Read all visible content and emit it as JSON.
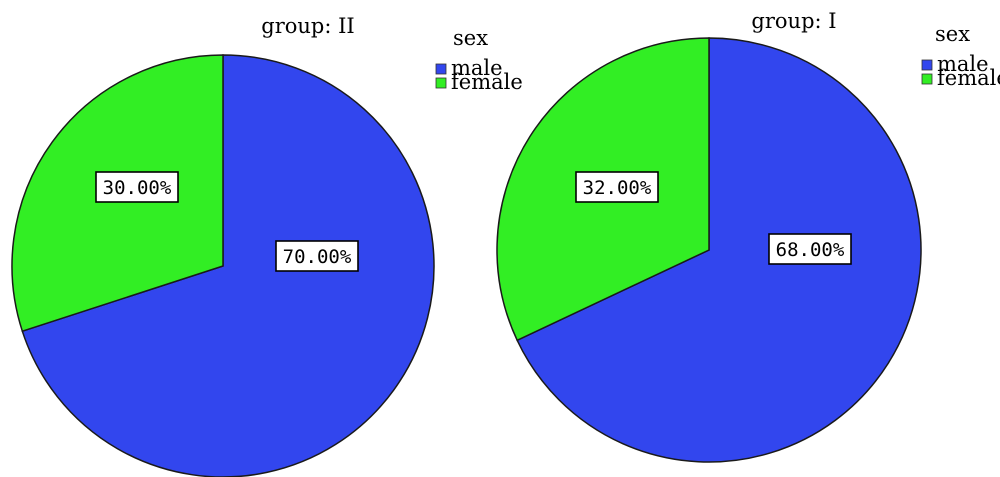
{
  "chart_data": [
    {
      "type": "pie",
      "title": "group: II",
      "legend_title": "sex",
      "legend_position": "right",
      "categories": [
        "male",
        "female"
      ],
      "values": [
        70.0,
        30.0
      ],
      "data_labels": [
        "70.00%",
        "30.00%"
      ],
      "colors": [
        "#3246ee",
        "#32ee24"
      ]
    },
    {
      "type": "pie",
      "title": "group: I",
      "legend_title": "sex",
      "legend_position": "right",
      "categories": [
        "male",
        "female"
      ],
      "values": [
        68.0,
        32.0
      ],
      "data_labels": [
        "68.00%",
        "32.00%"
      ],
      "colors": [
        "#3246ee",
        "#32ee24"
      ]
    }
  ]
}
